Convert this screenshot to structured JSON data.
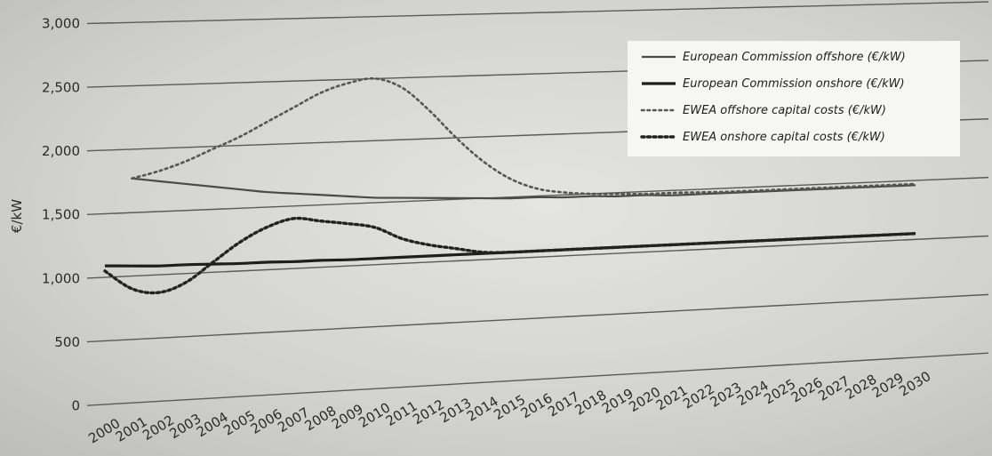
{
  "chart_data": {
    "type": "line",
    "title": "",
    "xlabel": "",
    "ylabel": "€/kW",
    "ylim": [
      0,
      3000
    ],
    "yticks": [
      "3,000",
      "2,500",
      "2,000",
      "1,500",
      "1,000",
      "500",
      "0"
    ],
    "ytick_values": [
      3000,
      2500,
      2000,
      1500,
      1000,
      500,
      0
    ],
    "grid": true,
    "legend_position": "top-right",
    "x": [
      "2000",
      "2001",
      "2002",
      "2003",
      "2004",
      "2005",
      "2006",
      "2007",
      "2008",
      "2009",
      "2010",
      "2011",
      "2012",
      "2013",
      "2014",
      "2015",
      "2016",
      "2017",
      "2018",
      "2019",
      "2020",
      "2021",
      "2022",
      "2023",
      "2024",
      "2025",
      "2026",
      "2027",
      "2028",
      "2029",
      "2030"
    ],
    "series": [
      {
        "name": "European Commission offshore (€/kW)",
        "style": "solid-thin",
        "color": "#4a4a4a",
        "values": [
          null,
          1770,
          1740,
          1710,
          1680,
          1650,
          1620,
          1600,
          1580,
          1560,
          1540,
          1530,
          1520,
          1510,
          1500,
          1490,
          1490,
          1480,
          1480,
          1470,
          1470,
          1460,
          1460,
          1460,
          1460,
          1460,
          1460,
          1460,
          1460,
          1460,
          1460
        ]
      },
      {
        "name": "European Commission onshore (€/kW)",
        "style": "solid-thick",
        "color": "#1e1e1e",
        "values": [
          1090,
          1080,
          1070,
          1070,
          1065,
          1060,
          1060,
          1055,
          1055,
          1050,
          1050,
          1050,
          1050,
          1050,
          1050,
          1050,
          1050,
          1050,
          1050,
          1050,
          1050,
          1050,
          1050,
          1050,
          1050,
          1050,
          1050,
          1050,
          1050,
          1050,
          1050
        ]
      },
      {
        "name": "EWEA offshore capital costs (€/kW)",
        "style": "dotted-light",
        "color": "#555555",
        "values": [
          null,
          1770,
          1820,
          1890,
          1980,
          2070,
          2180,
          2290,
          2400,
          2470,
          2500,
          2420,
          2230,
          2000,
          1800,
          1650,
          1560,
          1520,
          1500,
          1490,
          1480,
          1480,
          1475,
          1470,
          1470,
          1470,
          1470,
          1470,
          1470,
          1470,
          1470
        ]
      },
      {
        "name": "EWEA onshore capital costs (€/kW)",
        "style": "dotted-bold",
        "color": "#222222",
        "values": [
          1050,
          900,
          860,
          930,
          1080,
          1230,
          1340,
          1400,
          1370,
          1340,
          1300,
          1200,
          1140,
          1100,
          1060,
          1050,
          1050,
          1050,
          1050,
          1050,
          1050,
          1050,
          1050,
          1050,
          1050,
          1050,
          1050,
          1050,
          1050,
          1050,
          1050
        ]
      }
    ]
  }
}
